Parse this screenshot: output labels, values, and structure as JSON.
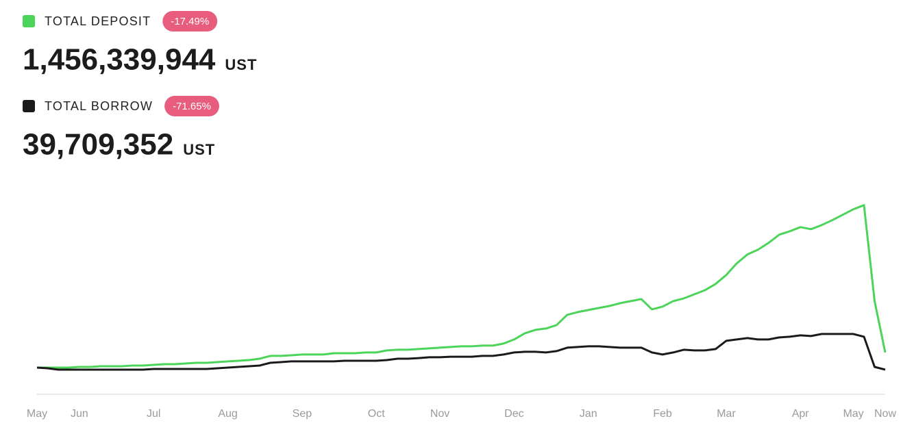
{
  "chart_data": {
    "type": "line",
    "summary": [
      {
        "change": "-17.49%",
        "total": "1,456,339,944",
        "unit": "UST"
      },
      {
        "change": "-71.65%",
        "total": "39,709,352",
        "unit": "UST"
      }
    ],
    "categories": [
      "May",
      null,
      null,
      null,
      "Jun",
      null,
      null,
      null,
      null,
      null,
      null,
      "Jul",
      null,
      null,
      null,
      null,
      null,
      null,
      "Aug",
      null,
      null,
      null,
      null,
      null,
      null,
      "Sep",
      null,
      null,
      null,
      null,
      null,
      null,
      "Oct",
      null,
      null,
      null,
      null,
      null,
      "Nov",
      null,
      null,
      null,
      null,
      null,
      null,
      "Dec",
      null,
      null,
      null,
      null,
      null,
      null,
      "Jan",
      null,
      null,
      null,
      null,
      null,
      null,
      "Feb",
      null,
      null,
      null,
      null,
      null,
      "Mar",
      null,
      null,
      null,
      null,
      null,
      null,
      "Apr",
      null,
      null,
      null,
      null,
      "May",
      null,
      null,
      "Now"
    ],
    "series": [
      {
        "name": "TOTAL DEPOSIT",
        "color": "#4cd45a",
        "values": [
          210000000,
          210000000,
          210000000,
          210000000,
          266000000,
          266000000,
          323000000,
          323000000,
          323000000,
          380000000,
          380000000,
          436000000,
          493000000,
          493000000,
          550000000,
          606000000,
          606000000,
          663000000,
          720000000,
          776000000,
          833000000,
          946000000,
          1173000000,
          1173000000,
          1229000000,
          1286000000,
          1286000000,
          1286000000,
          1399000000,
          1399000000,
          1399000000,
          1456000000,
          1456000000,
          1626000000,
          1683000000,
          1683000000,
          1739000000,
          1796000000,
          1853000000,
          1909000000,
          1966000000,
          1966000000,
          2023000000,
          2023000000,
          2193000000,
          2533000000,
          3043000000,
          3326000000,
          3439000000,
          3723000000,
          4573000000,
          4799000000,
          4969000000,
          5139000000,
          5309000000,
          5536000000,
          5706000000,
          5876000000,
          5026000000,
          5252000000,
          5706000000,
          5932000000,
          6272000000,
          6612000000,
          7122000000,
          7859000000,
          8822000000,
          9559000000,
          9955000000,
          10522000000,
          11202000000,
          11485000000,
          11825000000,
          11655000000,
          11995000000,
          12392000000,
          12845000000,
          13299000000,
          13639000000,
          5706000000,
          1456339944
        ]
      },
      {
        "name": "TOTAL BORROW",
        "color": "#1a1a1a",
        "values": [
          210000000,
          153000000,
          40000000,
          40000000,
          40000000,
          40000000,
          40000000,
          40000000,
          40000000,
          40000000,
          40000000,
          96000000,
          96000000,
          96000000,
          96000000,
          96000000,
          96000000,
          153000000,
          210000000,
          266000000,
          323000000,
          380000000,
          606000000,
          663000000,
          720000000,
          720000000,
          720000000,
          720000000,
          720000000,
          776000000,
          776000000,
          776000000,
          776000000,
          833000000,
          946000000,
          946000000,
          997000000,
          1060000000,
          1060000000,
          1110000000,
          1110000000,
          1110000000,
          1173000000,
          1173000000,
          1286000000,
          1456000000,
          1513000000,
          1513000000,
          1456000000,
          1570000000,
          1853000000,
          1909000000,
          1966000000,
          1966000000,
          1909000000,
          1853000000,
          1853000000,
          1853000000,
          1456000000,
          1286000000,
          1456000000,
          1683000000,
          1626000000,
          1626000000,
          1739000000,
          2420000000,
          2533000000,
          2646000000,
          2533000000,
          2533000000,
          2703000000,
          2759000000,
          2873000000,
          2816000000,
          2986000000,
          2986000000,
          2986000000,
          2986000000,
          2759000000,
          266000000,
          39709352
        ]
      }
    ],
    "ylim": [
      -2000000000,
      16000000000
    ]
  }
}
